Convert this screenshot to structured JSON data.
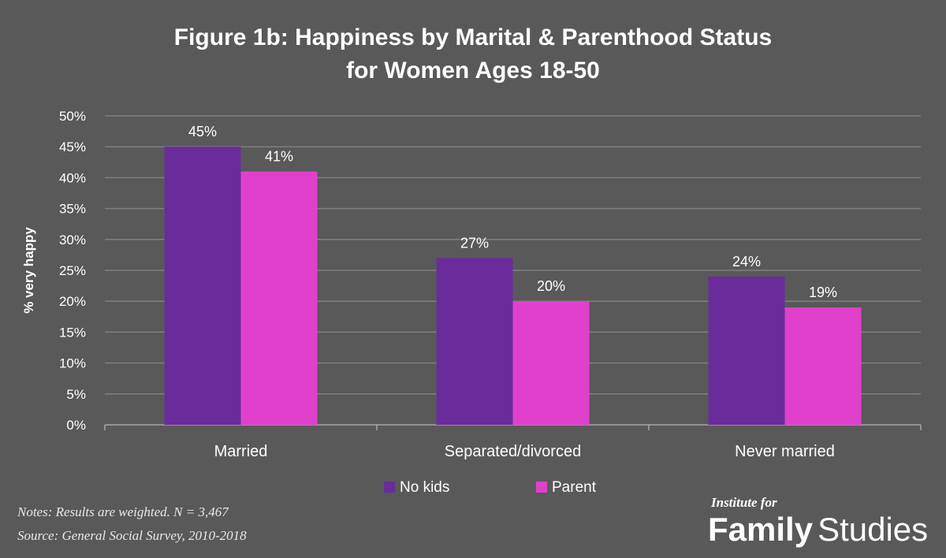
{
  "chart_data": {
    "type": "bar",
    "title": "Figure 1b: Happiness by Marital & Parenthood Status for Women Ages 18-50",
    "title_lines": [
      "Figure 1b: Happiness by Marital & Parenthood Status",
      "for Women Ages 18-50"
    ],
    "xlabel": "",
    "ylabel": "% very happy",
    "ylim": [
      0,
      50
    ],
    "y_ticks": [
      "0%",
      "5%",
      "10%",
      "15%",
      "20%",
      "25%",
      "30%",
      "35%",
      "40%",
      "45%",
      "50%"
    ],
    "categories": [
      "Married",
      "Separated/divorced",
      "Never married"
    ],
    "series": [
      {
        "name": "No kids",
        "color": "#6A2C9A",
        "values": [
          45,
          27,
          24
        ],
        "labels": [
          "45%",
          "27%",
          "24%"
        ]
      },
      {
        "name": "Parent",
        "color": "#E040CC",
        "values": [
          41,
          20,
          19
        ],
        "labels": [
          "41%",
          "20%",
          "19%"
        ]
      }
    ],
    "grid": true,
    "legend_position": "bottom-center"
  },
  "notes": {
    "line1": "Notes: Results are weighted. N = 3,467",
    "line2": "Source: General Social Survey, 2010-2018"
  },
  "logo": {
    "small": "Institute for",
    "bold": "Family",
    "light": "Studies"
  },
  "colors": {
    "background": "#595959",
    "grid": "#7f7f7f",
    "text": "#ffffff"
  }
}
